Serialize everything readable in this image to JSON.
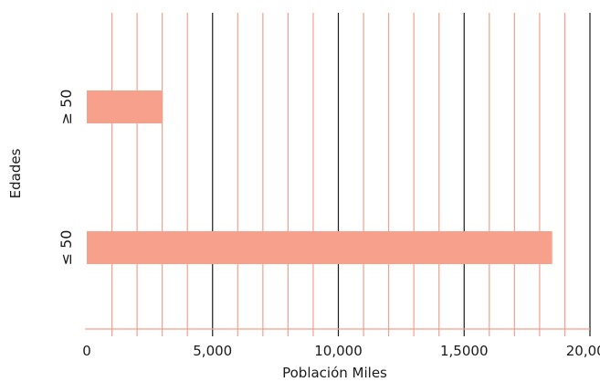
{
  "chart_data": {
    "type": "bar",
    "orientation": "horizontal",
    "categories": [
      "≥ 50",
      "≤ 50"
    ],
    "values": [
      3000,
      18500
    ],
    "xlabel": "Población Miles",
    "ylabel": "Edades",
    "xlim": [
      0,
      20000
    ],
    "xticks": [
      0,
      5000,
      10000,
      15000,
      20000
    ],
    "xtick_labels": [
      "0",
      "5,000",
      "10,000",
      "1,5000",
      "20,000"
    ],
    "minor_gridline_step": 1000,
    "grid": true,
    "legend": "none",
    "colors": {
      "bar": "#f7a08c",
      "minor_grid": "#f4a08c",
      "major_grid": "#1a1a1a",
      "axis": "#f4a08c",
      "text": "#1a1a1a"
    }
  }
}
